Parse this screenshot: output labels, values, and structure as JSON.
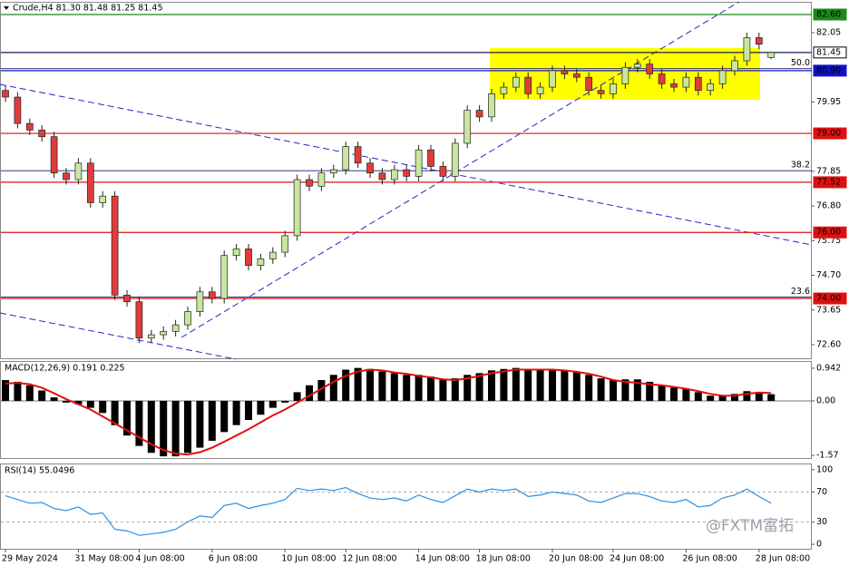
{
  "chart_data": {
    "type": "candlestick",
    "header": "Crude,H4  81.30 81.48 81.25 81.45",
    "categories": [
      "29 May 2024",
      null,
      null,
      null,
      null,
      null,
      "31 May 08:00",
      null,
      null,
      null,
      null,
      "4 Jun 08:00",
      null,
      null,
      null,
      null,
      null,
      "6 Jun 08:00",
      null,
      null,
      null,
      null,
      null,
      "10 Jun 08:00",
      null,
      null,
      null,
      null,
      "12 Jun 08:00",
      null,
      null,
      null,
      null,
      null,
      "14 Jun 08:00",
      null,
      null,
      null,
      null,
      "18 Jun 08:00",
      null,
      null,
      null,
      null,
      null,
      "20 Jun 08:00",
      null,
      null,
      null,
      null,
      "24 Jun 08:00",
      null,
      null,
      null,
      null,
      null,
      "26 Jun 08:00",
      null,
      null,
      null,
      null,
      null,
      "28 Jun 08:00",
      null
    ],
    "open": [
      80.3,
      80.1,
      79.3,
      79.1,
      78.9,
      77.8,
      77.6,
      78.1,
      76.9,
      77.1,
      74.1,
      73.9,
      72.8,
      72.9,
      73.0,
      73.2,
      73.6,
      74.2,
      74.0,
      75.3,
      75.5,
      75.0,
      75.2,
      75.4,
      75.9,
      77.6,
      77.4,
      77.8,
      77.9,
      78.6,
      78.1,
      77.8,
      77.6,
      77.9,
      77.7,
      78.5,
      78.0,
      77.7,
      78.7,
      79.7,
      79.5,
      80.2,
      80.4,
      80.7,
      80.2,
      80.4,
      80.9,
      80.8,
      80.7,
      80.3,
      80.2,
      80.5,
      81.0,
      81.1,
      80.8,
      80.5,
      80.4,
      80.7,
      80.3,
      80.5,
      80.9,
      81.2,
      81.9,
      81.3
    ],
    "high": [
      80.45,
      80.25,
      79.45,
      79.25,
      79.05,
      77.95,
      78.25,
      78.25,
      77.25,
      77.25,
      74.25,
      74.05,
      73.05,
      73.15,
      73.35,
      73.75,
      74.35,
      74.35,
      75.45,
      75.65,
      75.65,
      75.35,
      75.55,
      76.05,
      77.75,
      77.75,
      77.95,
      78.05,
      78.75,
      78.75,
      78.25,
      77.95,
      78.05,
      78.05,
      78.65,
      78.65,
      78.15,
      78.85,
      79.85,
      79.85,
      80.35,
      80.55,
      80.85,
      80.85,
      80.55,
      81.05,
      81.05,
      80.95,
      80.85,
      80.45,
      80.65,
      81.15,
      81.25,
      81.25,
      80.95,
      80.65,
      80.85,
      80.85,
      80.65,
      81.05,
      81.35,
      82.05,
      82.05,
      81.48
    ],
    "low": [
      79.95,
      79.15,
      78.95,
      78.75,
      77.65,
      77.45,
      77.45,
      76.75,
      76.75,
      73.95,
      73.75,
      72.65,
      72.65,
      72.75,
      72.85,
      73.05,
      73.45,
      73.85,
      73.85,
      75.15,
      74.85,
      74.85,
      75.05,
      75.25,
      75.75,
      77.25,
      77.25,
      77.65,
      77.75,
      77.95,
      77.65,
      77.45,
      77.45,
      77.55,
      77.55,
      77.85,
      77.55,
      77.55,
      78.55,
      79.35,
      79.35,
      80.05,
      80.25,
      80.05,
      80.05,
      80.25,
      80.65,
      80.55,
      80.15,
      80.05,
      80.05,
      80.35,
      80.85,
      80.65,
      80.35,
      80.25,
      80.25,
      80.15,
      80.15,
      80.35,
      80.75,
      81.05,
      81.55,
      81.25
    ],
    "close": [
      80.1,
      79.3,
      79.1,
      78.9,
      77.8,
      77.6,
      78.1,
      76.9,
      77.1,
      74.1,
      73.9,
      72.8,
      72.9,
      73.0,
      73.2,
      73.6,
      74.2,
      74.0,
      75.3,
      75.5,
      75.0,
      75.2,
      75.4,
      75.9,
      77.6,
      77.4,
      77.8,
      77.9,
      78.6,
      78.1,
      77.8,
      77.6,
      77.9,
      77.7,
      78.5,
      78.0,
      77.7,
      78.7,
      79.7,
      79.5,
      80.2,
      80.4,
      80.7,
      80.2,
      80.4,
      80.9,
      80.8,
      80.7,
      80.3,
      80.2,
      80.5,
      81.0,
      81.1,
      80.8,
      80.5,
      80.4,
      80.7,
      80.3,
      80.5,
      80.9,
      81.2,
      81.9,
      81.7,
      81.45
    ],
    "up_color": "#c8e6a0",
    "down_color": "#e03c3c",
    "ylim": [
      72.16,
      82.985
    ],
    "yticks": [
      82.05,
      79.95,
      77.85,
      {
        "value": 76.8,
        "label": "76.80"
      },
      75.75,
      {
        "value": 74.7,
        "label": "74.70"
      },
      73.65,
      {
        "value": 72.6,
        "label": "72.60"
      }
    ],
    "levels": [
      {
        "value": 82.6,
        "label": "82.60",
        "color": "#1a8a1a"
      },
      {
        "value": 81.45,
        "label": "81.45",
        "color": "#1a1a5a"
      },
      {
        "value": 80.9,
        "label": "80.90",
        "color": "#1010c8"
      },
      {
        "value": 79.0,
        "label": "79.00",
        "color": "#e01010"
      },
      {
        "value": 77.52,
        "label": "77.52",
        "color": "#e01010"
      },
      {
        "value": 76.0,
        "label": "76.00",
        "color": "#e01010"
      },
      {
        "value": 74.0,
        "label": "74.00",
        "color": "#e01010"
      }
    ],
    "fib_levels": [
      {
        "value": 80.96,
        "label": "50.0"
      },
      {
        "value": 77.87,
        "label": "38.2"
      },
      {
        "value": 74.04,
        "label": "23.6"
      }
    ],
    "macd": {
      "title": "MACD(12,26,9) 0.191 0.225",
      "ylim": [
        -1.65,
        1.15
      ],
      "yticks": [
        0.942,
        {
          "value": 0,
          "label": "0.00"
        },
        -1.57
      ],
      "histogram": [
        0.6,
        0.55,
        0.45,
        0.3,
        0.1,
        -0.05,
        -0.1,
        -0.2,
        -0.35,
        -0.7,
        -1.0,
        -1.3,
        -1.5,
        -1.6,
        -1.6,
        -1.5,
        -1.35,
        -1.15,
        -0.9,
        -0.7,
        -0.55,
        -0.4,
        -0.2,
        -0.05,
        0.25,
        0.45,
        0.6,
        0.75,
        0.9,
        0.95,
        0.92,
        0.85,
        0.8,
        0.75,
        0.75,
        0.7,
        0.62,
        0.65,
        0.75,
        0.8,
        0.88,
        0.92,
        0.95,
        0.9,
        0.88,
        0.9,
        0.88,
        0.82,
        0.75,
        0.65,
        0.6,
        0.62,
        0.62,
        0.55,
        0.45,
        0.38,
        0.35,
        0.25,
        0.15,
        0.15,
        0.2,
        0.28,
        0.25,
        0.191
      ],
      "signal": [
        0.5,
        0.52,
        0.48,
        0.38,
        0.22,
        0.05,
        -0.1,
        -0.25,
        -0.45,
        -0.65,
        -0.85,
        -1.05,
        -1.25,
        -1.42,
        -1.52,
        -1.55,
        -1.48,
        -1.35,
        -1.18,
        -1.0,
        -0.82,
        -0.62,
        -0.42,
        -0.25,
        -0.05,
        0.15,
        0.35,
        0.55,
        0.72,
        0.85,
        0.9,
        0.88,
        0.82,
        0.78,
        0.72,
        0.68,
        0.62,
        0.6,
        0.65,
        0.72,
        0.8,
        0.85,
        0.9,
        0.9,
        0.9,
        0.9,
        0.88,
        0.84,
        0.78,
        0.7,
        0.6,
        0.55,
        0.52,
        0.48,
        0.45,
        0.4,
        0.35,
        0.28,
        0.2,
        0.15,
        0.15,
        0.2,
        0.24,
        0.225
      ],
      "histogram_color": "#000000",
      "signal_color": "#e01010"
    },
    "rsi": {
      "title": "RSI(14) 55.0496",
      "ylim": [
        -6,
        107
      ],
      "yticks": [
        100,
        70,
        30,
        0
      ],
      "color": "#2f8fe0",
      "values": [
        65,
        60,
        55,
        56,
        48,
        45,
        50,
        40,
        42,
        20,
        18,
        12,
        14,
        16,
        20,
        30,
        38,
        36,
        52,
        55,
        48,
        52,
        55,
        60,
        75,
        72,
        74,
        72,
        76,
        68,
        62,
        60,
        62,
        58,
        66,
        60,
        56,
        65,
        74,
        70,
        74,
        72,
        74,
        64,
        66,
        70,
        68,
        66,
        58,
        56,
        62,
        68,
        68,
        64,
        58,
        56,
        60,
        50,
        52,
        62,
        66,
        74,
        64,
        55.0496
      ]
    },
    "watermark": "@FXTM富拓"
  }
}
